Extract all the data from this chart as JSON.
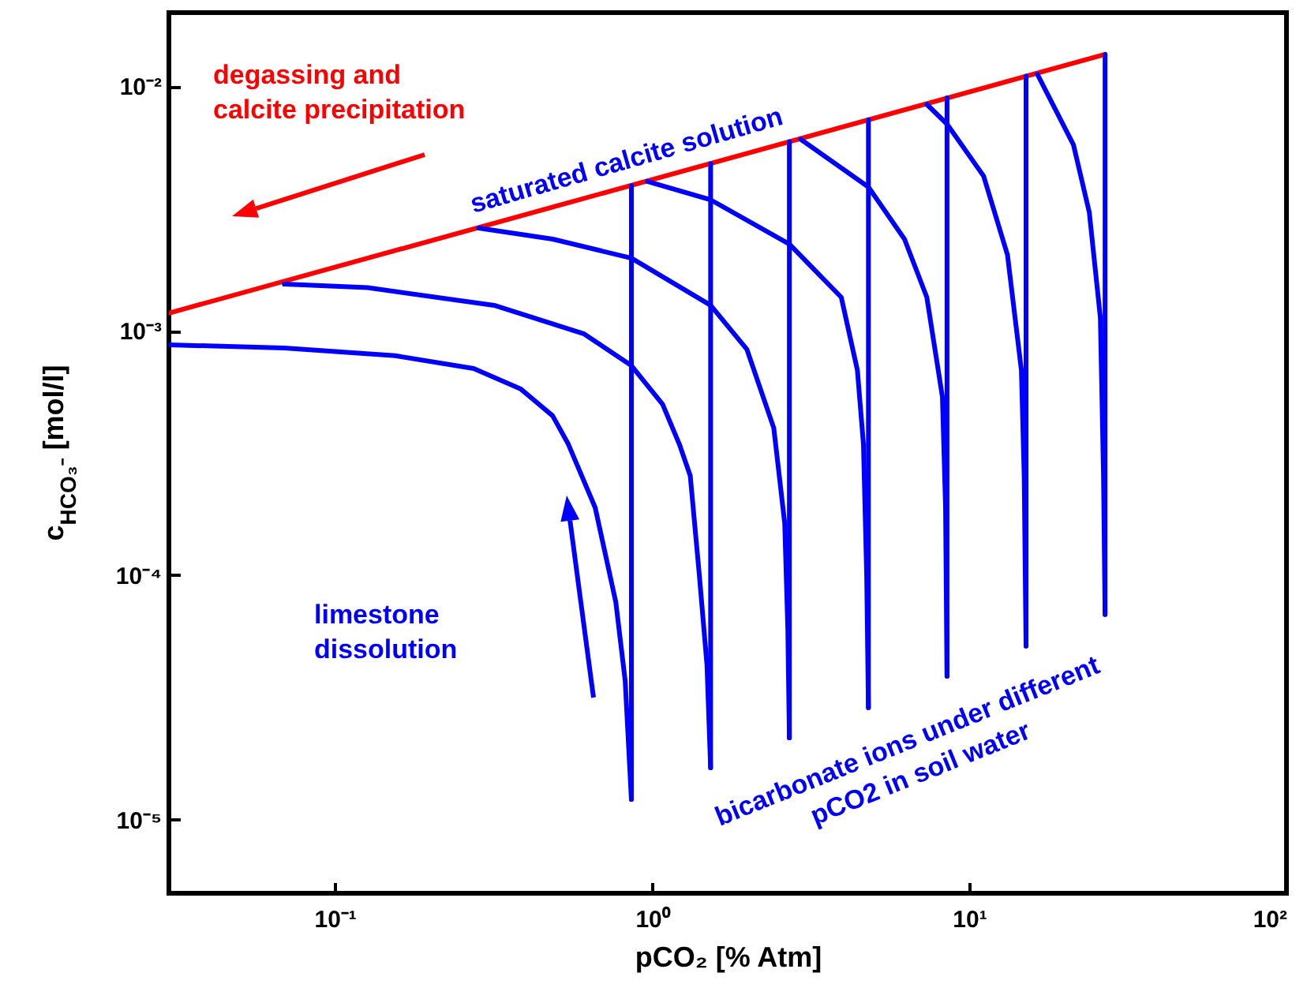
{
  "chart_data": {
    "type": "line",
    "xlabel": "pCO₂ [% Atm]",
    "ylabel": "c$_{HCO₃⁻}$ [mol/l]",
    "log": "xy",
    "grid": false,
    "legend": false,
    "xlim": [
      0.03,
      100
    ],
    "ylim": [
      5e-06,
      0.02
    ],
    "xticks": [
      {
        "value": 0.1,
        "label": "10⁻¹"
      },
      {
        "value": 1,
        "label": "10⁰"
      },
      {
        "value": 10,
        "label": "10¹"
      },
      {
        "value": 100,
        "label": "10²"
      }
    ],
    "yticks": [
      {
        "value": 1e-05,
        "label": "10⁻⁵"
      },
      {
        "value": 0.0001,
        "label": "10⁻⁴"
      },
      {
        "value": 0.001,
        "label": "10⁻³"
      },
      {
        "value": 0.01,
        "label": "10⁻²"
      }
    ],
    "annotations": [
      "degassing and\ncalcite precipitation",
      "saturated calcite solution",
      "limestone\ndissolution",
      "bicarbonate ions under different\npCO2 in soil water"
    ],
    "series": [
      {
        "color": "#ff0000",
        "x": [
          0.03,
          26.8
        ],
        "values": [
          0.00118,
          0.0135
        ]
      },
      {
        "color": "#0000ff",
        "x": [
          0.861,
          0.861
        ],
        "values": [
          1.21e-05,
          0.00392
        ]
      },
      {
        "color": "#0000ff",
        "x": [
          1.53,
          1.53
        ],
        "values": [
          1.63e-05,
          0.00482
        ]
      },
      {
        "color": "#0000ff",
        "x": [
          2.71,
          2.71
        ],
        "values": [
          2.16e-05,
          0.00593
        ]
      },
      {
        "color": "#0000ff",
        "x": [
          4.81,
          4.81
        ],
        "values": [
          2.87e-05,
          0.00729
        ]
      },
      {
        "color": "#0000ff",
        "x": [
          8.51,
          8.51
        ],
        "values": [
          3.86e-05,
          0.00897
        ]
      },
      {
        "color": "#0000ff",
        "x": [
          15.1,
          15.1
        ],
        "values": [
          5.13e-05,
          0.011
        ]
      },
      {
        "color": "#0000ff",
        "x": [
          26.8,
          26.8
        ],
        "values": [
          6.9e-05,
          0.0135
        ]
      },
      {
        "color": "#0000ff",
        "x": [
          0.03,
          0.0693,
          0.155,
          0.274,
          0.386,
          0.486,
          0.545,
          0.662,
          0.769,
          0.823,
          0.861
        ],
        "values": [
          0.000875,
          0.00085,
          0.00079,
          0.0007,
          0.000577,
          0.000449,
          0.000343,
          0.000189,
          7.76e-05,
          3.7e-05,
          1.21e-05
        ]
      },
      {
        "color": "#0000ff",
        "x": [
          0.0693,
          0.127,
          0.318,
          0.611,
          0.861,
          1.08,
          1.22,
          1.32,
          1.41,
          1.49,
          1.53
        ],
        "values": [
          0.00155,
          0.0015,
          0.00127,
          0.00097,
          0.00072,
          0.0005,
          0.000343,
          0.000255,
          0.0001,
          4.3e-05,
          1.63e-05
        ]
      },
      {
        "color": "#0000ff",
        "x": [
          0.284,
          0.486,
          0.861,
          1.53,
          1.99,
          2.42,
          2.62,
          2.68,
          2.71
        ],
        "values": [
          0.00263,
          0.00237,
          0.00198,
          0.00127,
          0.00084,
          0.0004,
          0.000163,
          6e-05,
          2.16e-05
        ]
      },
      {
        "color": "#0000ff",
        "x": [
          0.966,
          1.53,
          2.71,
          3.95,
          4.44,
          4.64,
          4.75,
          4.81
        ],
        "values": [
          0.00408,
          0.00343,
          0.00226,
          0.00137,
          0.00069,
          0.000343,
          0.0001,
          2.87e-05
        ]
      },
      {
        "color": "#0000ff",
        "x": [
          2.94,
          4.81,
          6.25,
          7.35,
          8.23,
          8.42,
          8.51
        ],
        "values": [
          0.00607,
          0.00387,
          0.00237,
          0.00137,
          0.000536,
          0.00019,
          3.86e-05
        ]
      },
      {
        "color": "#0000ff",
        "x": [
          7.35,
          8.51,
          11.1,
          13.2,
          14.6,
          14.9,
          15.1
        ],
        "values": [
          0.00843,
          0.007,
          0.00429,
          0.00204,
          0.00069,
          0.000255,
          5.13e-05
        ]
      },
      {
        "color": "#0000ff",
        "x": [
          16.4,
          21.3,
          23.9,
          25.9,
          26.5,
          26.8
        ],
        "values": [
          0.0112,
          0.00577,
          0.00305,
          0.00113,
          0.000255,
          6.9e-05
        ]
      }
    ]
  }
}
